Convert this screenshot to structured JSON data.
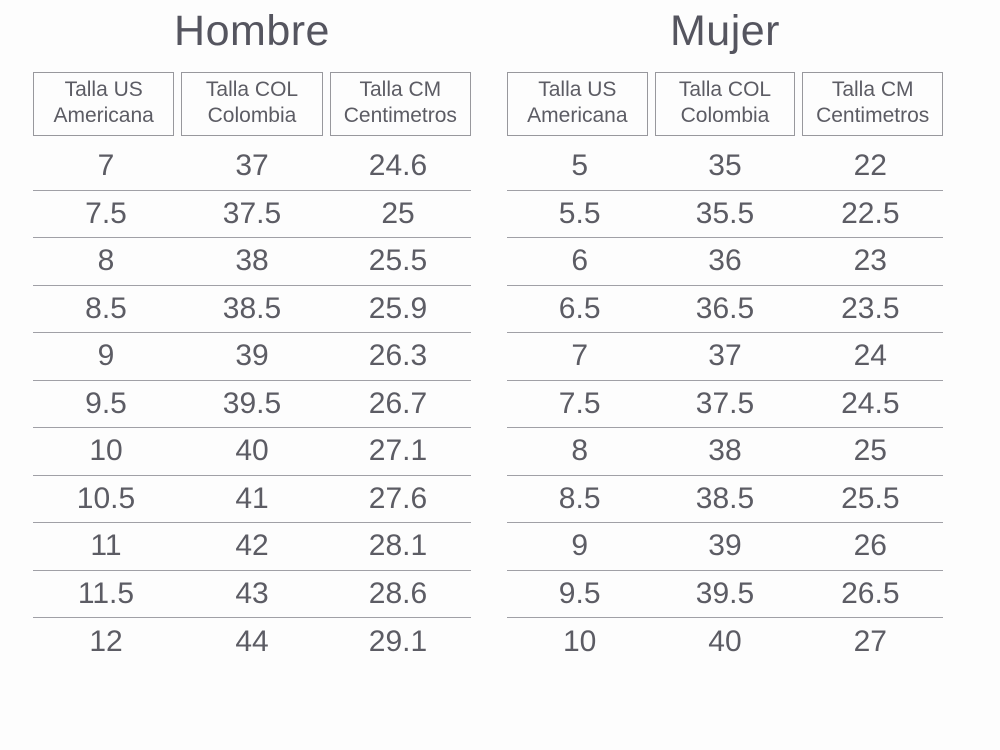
{
  "colors": {
    "background": "#fdfdfd",
    "text": "#5c5c64",
    "title": "#55555f",
    "box_border": "#98989d",
    "row_line": "#a0a0a6"
  },
  "tables": [
    {
      "title": "Hombre",
      "columns": [
        {
          "lines": [
            "Talla US",
            "Americana"
          ]
        },
        {
          "lines": [
            "Talla COL",
            "Colombia"
          ]
        },
        {
          "lines": [
            "Talla CM",
            "Centimetros"
          ]
        }
      ],
      "rows": [
        [
          "7",
          "37",
          "24.6"
        ],
        [
          "7.5",
          "37.5",
          "25"
        ],
        [
          "8",
          "38",
          "25.5"
        ],
        [
          "8.5",
          "38.5",
          "25.9"
        ],
        [
          "9",
          "39",
          "26.3"
        ],
        [
          "9.5",
          "39.5",
          "26.7"
        ],
        [
          "10",
          "40",
          "27.1"
        ],
        [
          "10.5",
          "41",
          "27.6"
        ],
        [
          "11",
          "42",
          "28.1"
        ],
        [
          "11.5",
          "43",
          "28.6"
        ],
        [
          "12",
          "44",
          "29.1"
        ]
      ]
    },
    {
      "title": "Mujer",
      "columns": [
        {
          "lines": [
            "Talla US",
            "Americana"
          ]
        },
        {
          "lines": [
            "Talla COL",
            "Colombia"
          ]
        },
        {
          "lines": [
            "Talla CM",
            "Centimetros"
          ]
        }
      ],
      "rows": [
        [
          "5",
          "35",
          "22"
        ],
        [
          "5.5",
          "35.5",
          "22.5"
        ],
        [
          "6",
          "36",
          "23"
        ],
        [
          "6.5",
          "36.5",
          "23.5"
        ],
        [
          "7",
          "37",
          "24"
        ],
        [
          "7.5",
          "37.5",
          "24.5"
        ],
        [
          "8",
          "38",
          "25"
        ],
        [
          "8.5",
          "38.5",
          "25.5"
        ],
        [
          "9",
          "39",
          "26"
        ],
        [
          "9.5",
          "39.5",
          "26.5"
        ],
        [
          "10",
          "40",
          "27"
        ]
      ]
    }
  ],
  "chart_data": [
    {
      "type": "table",
      "title": "Hombre",
      "columns": [
        "Talla US Americana",
        "Talla COL Colombia",
        "Talla CM Centimetros"
      ],
      "rows": [
        [
          7,
          37,
          24.6
        ],
        [
          7.5,
          37.5,
          25
        ],
        [
          8,
          38,
          25.5
        ],
        [
          8.5,
          38.5,
          25.9
        ],
        [
          9,
          39,
          26.3
        ],
        [
          9.5,
          39.5,
          26.7
        ],
        [
          10,
          40,
          27.1
        ],
        [
          10.5,
          41,
          27.6
        ],
        [
          11,
          42,
          28.1
        ],
        [
          11.5,
          43,
          28.6
        ],
        [
          12,
          44,
          29.1
        ]
      ]
    },
    {
      "type": "table",
      "title": "Mujer",
      "columns": [
        "Talla US Americana",
        "Talla COL Colombia",
        "Talla CM Centimetros"
      ],
      "rows": [
        [
          5,
          35,
          22
        ],
        [
          5.5,
          35.5,
          22.5
        ],
        [
          6,
          36,
          23
        ],
        [
          6.5,
          36.5,
          23.5
        ],
        [
          7,
          37,
          24
        ],
        [
          7.5,
          37.5,
          24.5
        ],
        [
          8,
          38,
          25
        ],
        [
          8.5,
          38.5,
          25.5
        ],
        [
          9,
          39,
          26
        ],
        [
          9.5,
          39.5,
          26.5
        ],
        [
          10,
          40,
          27
        ]
      ]
    }
  ]
}
